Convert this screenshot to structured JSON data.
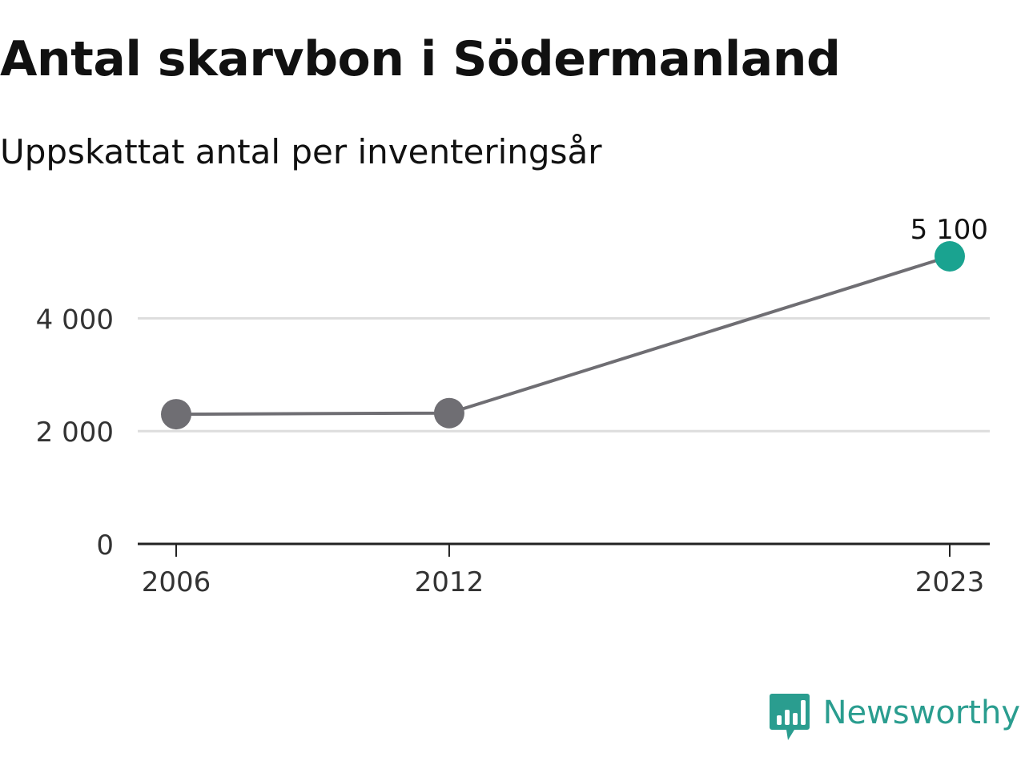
{
  "chart_data": {
    "type": "line",
    "title": "Antal skarvbon i Södermanland",
    "subtitle": "Uppskattat antal per inventeringsår",
    "x": [
      2006,
      2012,
      2023
    ],
    "x_tick_labels": [
      "2006",
      "2012",
      "2023"
    ],
    "series": [
      {
        "values": [
          2300,
          2320,
          5100
        ]
      }
    ],
    "y_ticks": [
      0,
      2000,
      4000
    ],
    "y_tick_labels": [
      "0",
      "2 000",
      "4 000"
    ],
    "ylim": [
      0,
      5100
    ],
    "xlim": [
      2006,
      2023
    ],
    "grid": true,
    "highlight": {
      "index": 2,
      "label": "5 100"
    },
    "colors": {
      "line": "#6f6e73",
      "point": "#6f6e73",
      "highlight": "#1aa390",
      "grid": "#dddddd",
      "axis": "#222222"
    }
  },
  "branding": {
    "name": "Newsworthy",
    "icon": "newsworthy-logo-icon",
    "color": "#2a9d8f"
  }
}
